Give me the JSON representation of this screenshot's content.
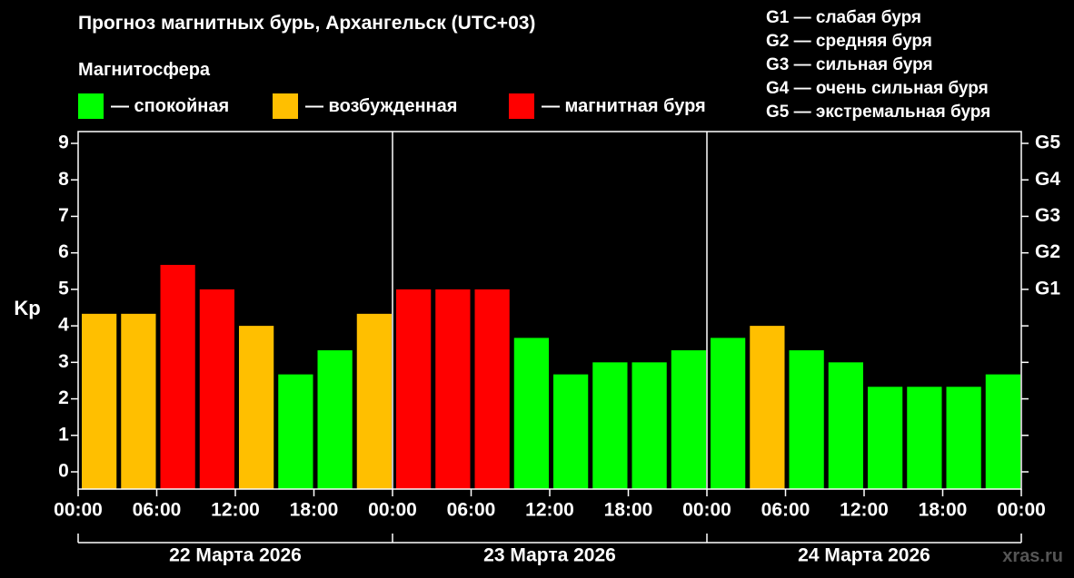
{
  "title": "Прогноз магнитных бурь, Архангельск (UTC+03)",
  "legend": {
    "heading": "Магнитосфера",
    "items": [
      {
        "label": "— спокойная",
        "color": "#00ff00"
      },
      {
        "label": "— возбужденная",
        "color": "#ffbf00"
      },
      {
        "label": "— магнитная буря",
        "color": "#ff0000"
      }
    ]
  },
  "storm_levels": [
    "G1 — слабая буря",
    "G2 — средняя буря",
    "G3 — сильная буря",
    "G4 — очень сильная буря",
    "G5 — экстремальная буря"
  ],
  "watermark": "xras.ru",
  "chart_data": {
    "type": "bar",
    "ylabel": "Kp",
    "ylim": [
      0,
      9
    ],
    "y_ticks": [
      "0",
      "1",
      "2",
      "3",
      "4",
      "5",
      "6",
      "7",
      "8",
      "9"
    ],
    "right_ticks": [
      {
        "value": 5,
        "label": "G1"
      },
      {
        "value": 6,
        "label": "G2"
      },
      {
        "value": 7,
        "label": "G3"
      },
      {
        "value": 8,
        "label": "G4"
      },
      {
        "value": 9,
        "label": "G5"
      }
    ],
    "x_tick_labels": [
      "00:00",
      "06:00",
      "12:00",
      "18:00",
      "00:00",
      "06:00",
      "12:00",
      "18:00",
      "00:00",
      "06:00",
      "12:00",
      "18:00",
      "00:00"
    ],
    "days": [
      "22 Марта 2026",
      "23 Марта 2026",
      "24 Марта 2026"
    ],
    "values": [
      4.33,
      4.33,
      5.67,
      5.0,
      4.0,
      2.67,
      3.33,
      4.33,
      5.0,
      5.0,
      5.0,
      3.67,
      2.67,
      3.0,
      3.0,
      3.33,
      3.67,
      4.0,
      3.33,
      3.0,
      2.33,
      2.33,
      2.33,
      2.67
    ],
    "colors": [
      "#ffbf00",
      "#ffbf00",
      "#ff0000",
      "#ff0000",
      "#ffbf00",
      "#00ff00",
      "#00ff00",
      "#ffbf00",
      "#ff0000",
      "#ff0000",
      "#ff0000",
      "#00ff00",
      "#00ff00",
      "#00ff00",
      "#00ff00",
      "#00ff00",
      "#00ff00",
      "#ffbf00",
      "#00ff00",
      "#00ff00",
      "#00ff00",
      "#00ff00",
      "#00ff00",
      "#00ff00"
    ]
  }
}
